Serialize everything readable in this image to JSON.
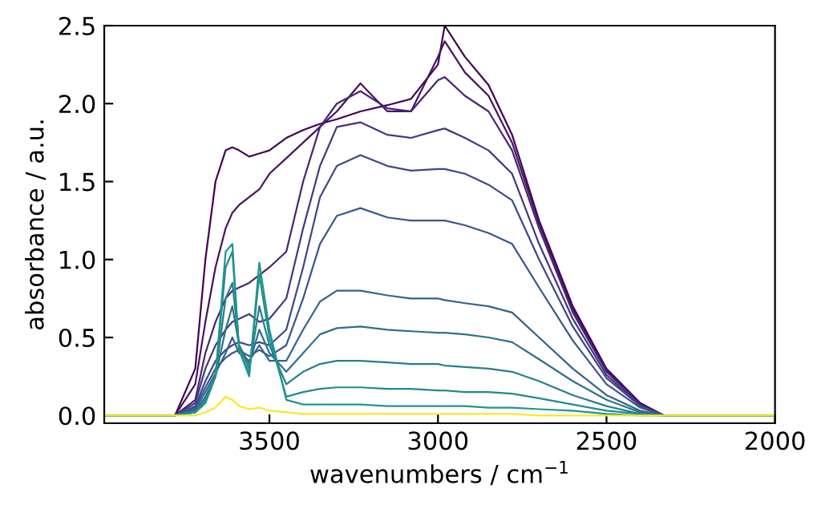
{
  "chart_data": {
    "type": "line",
    "xlabel": "wavenumbers / cm$^{−1}$",
    "ylabel": "absorbance / a.u.",
    "xlim": [
      3990,
      2000
    ],
    "ylim": [
      -0.05,
      2.5
    ],
    "xticks": [
      3500,
      3000,
      2500,
      2000
    ],
    "yticks": [
      {
        "value": 0,
        "label": "0.0"
      },
      {
        "value": 0.5,
        "label": "0.5"
      },
      {
        "value": 1,
        "label": "1.0"
      },
      {
        "value": 1.5,
        "label": "1.5"
      },
      {
        "value": 2,
        "label": "2.0"
      },
      {
        "value": 2.5,
        "label": "2.5"
      }
    ],
    "grid": false,
    "legend": false,
    "marker": "none",
    "line_style": "solid",
    "x": [
      3990,
      3780,
      3720,
      3690,
      3660,
      3630,
      3610,
      3590,
      3560,
      3530,
      3500,
      3450,
      3400,
      3350,
      3300,
      3230,
      3150,
      3080,
      3000,
      2980,
      2920,
      2850,
      2780,
      2700,
      2600,
      2500,
      2400,
      2330,
      2000
    ],
    "series": [
      {
        "color": "#440154",
        "values": [
          0,
          0,
          0.3,
          1.0,
          1.5,
          1.7,
          1.72,
          1.7,
          1.66,
          1.68,
          1.7,
          1.78,
          1.83,
          1.87,
          1.9,
          1.95,
          1.99,
          2.03,
          2.25,
          2.5,
          2.3,
          2.12,
          1.8,
          1.25,
          0.7,
          0.3,
          0.08,
          0,
          0
        ]
      },
      {
        "color": "#471365",
        "values": [
          0,
          0,
          0.2,
          0.6,
          0.95,
          1.2,
          1.3,
          1.35,
          1.4,
          1.45,
          1.55,
          1.65,
          1.75,
          1.85,
          1.95,
          2.13,
          1.95,
          1.95,
          2.3,
          2.4,
          2.2,
          2.05,
          1.75,
          1.23,
          0.68,
          0.29,
          0.07,
          0,
          0
        ]
      },
      {
        "color": "#482575",
        "values": [
          0,
          0,
          0.1,
          0.4,
          0.6,
          0.75,
          0.8,
          0.82,
          0.85,
          0.9,
          0.95,
          1.05,
          1.5,
          1.85,
          2.0,
          2.08,
          1.97,
          1.95,
          2.15,
          2.17,
          2.05,
          1.95,
          1.7,
          1.2,
          0.66,
          0.28,
          0.07,
          0,
          0
        ]
      },
      {
        "color": "#453781",
        "values": [
          0,
          0,
          0.08,
          0.3,
          0.45,
          0.55,
          0.6,
          0.62,
          0.65,
          0.6,
          0.62,
          0.75,
          1.2,
          1.6,
          1.85,
          1.88,
          1.8,
          1.78,
          1.83,
          1.84,
          1.78,
          1.7,
          1.55,
          1.1,
          0.62,
          0.26,
          0.06,
          0,
          0
        ]
      },
      {
        "color": "#3f4788",
        "values": [
          0,
          0,
          0.06,
          0.22,
          0.35,
          0.42,
          0.45,
          0.47,
          0.45,
          0.47,
          0.45,
          0.55,
          0.95,
          1.4,
          1.6,
          1.67,
          1.6,
          1.57,
          1.58,
          1.58,
          1.55,
          1.48,
          1.38,
          1.0,
          0.57,
          0.24,
          0.06,
          0,
          0
        ]
      },
      {
        "color": "#39568c",
        "values": [
          0,
          0,
          0.05,
          0.18,
          0.3,
          0.37,
          0.4,
          0.42,
          0.38,
          0.42,
          0.38,
          0.45,
          0.75,
          1.1,
          1.28,
          1.33,
          1.27,
          1.25,
          1.25,
          1.25,
          1.22,
          1.17,
          1.1,
          0.82,
          0.48,
          0.2,
          0.05,
          0,
          0
        ]
      },
      {
        "color": "#33638d",
        "values": [
          0,
          0,
          0.04,
          0.15,
          0.27,
          0.4,
          0.5,
          0.4,
          0.35,
          0.45,
          0.35,
          0.35,
          0.55,
          0.73,
          0.8,
          0.8,
          0.77,
          0.75,
          0.75,
          0.74,
          0.72,
          0.7,
          0.66,
          0.5,
          0.3,
          0.13,
          0.03,
          0,
          0
        ]
      },
      {
        "color": "#2d718e",
        "values": [
          0,
          0,
          0.03,
          0.12,
          0.25,
          0.55,
          0.7,
          0.45,
          0.33,
          0.55,
          0.4,
          0.28,
          0.4,
          0.52,
          0.56,
          0.57,
          0.55,
          0.54,
          0.53,
          0.53,
          0.52,
          0.5,
          0.47,
          0.36,
          0.22,
          0.1,
          0.02,
          0,
          0
        ]
      },
      {
        "color": "#287d8e",
        "values": [
          0,
          0,
          0.02,
          0.1,
          0.25,
          0.75,
          0.85,
          0.45,
          0.3,
          0.7,
          0.45,
          0.2,
          0.28,
          0.33,
          0.35,
          0.35,
          0.34,
          0.33,
          0.33,
          0.32,
          0.31,
          0.3,
          0.28,
          0.22,
          0.13,
          0.06,
          0.01,
          0,
          0
        ]
      },
      {
        "color": "#238a8d",
        "values": [
          0,
          0,
          0.02,
          0.08,
          0.25,
          0.95,
          1.05,
          0.42,
          0.27,
          0.9,
          0.5,
          0.12,
          0.15,
          0.17,
          0.18,
          0.18,
          0.17,
          0.17,
          0.16,
          0.16,
          0.15,
          0.15,
          0.14,
          0.11,
          0.07,
          0.03,
          0.01,
          0,
          0
        ]
      },
      {
        "color": "#1f968b",
        "values": [
          0,
          0,
          0.02,
          0.08,
          0.25,
          1.05,
          1.1,
          0.42,
          0.25,
          0.98,
          0.55,
          0.1,
          0.07,
          0.07,
          0.07,
          0.07,
          0.06,
          0.06,
          0.06,
          0.06,
          0.06,
          0.05,
          0.05,
          0.04,
          0.03,
          0.01,
          0,
          0,
          0
        ]
      },
      {
        "color": "#fde725",
        "values": [
          0,
          0,
          0,
          0.02,
          0.05,
          0.12,
          0.1,
          0.06,
          0.04,
          0.05,
          0.03,
          0.02,
          0.01,
          0.01,
          0.01,
          0.01,
          0.01,
          0.01,
          0.01,
          0.01,
          0.01,
          0.01,
          0.01,
          0,
          0,
          0,
          0,
          0,
          0
        ]
      }
    ]
  }
}
